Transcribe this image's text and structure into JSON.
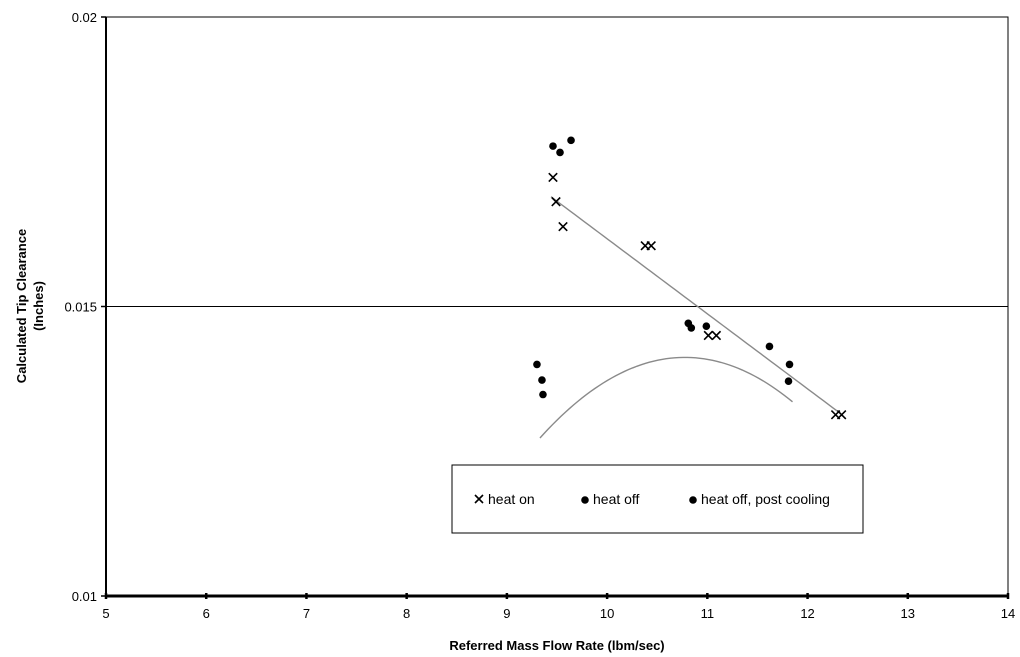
{
  "chart_data": {
    "type": "scatter",
    "xlabel": "Referred Mass Flow Rate (lbm/sec)",
    "ylabel_lines": [
      "Calculated Tip Clearance",
      "(Inches)"
    ],
    "xlim": [
      5,
      14
    ],
    "ylim": [
      0.01,
      0.02
    ],
    "x_ticks": [
      "5",
      "6",
      "7",
      "8",
      "9",
      "10",
      "11",
      "12",
      "13",
      "14"
    ],
    "y_ticks": [
      "0.01",
      "0.015",
      "0.02"
    ],
    "gridlines_y": [
      0.015
    ],
    "legend_position": "lower-center",
    "colors": {
      "marker": "#000000",
      "trend": "#8a8a8a",
      "grid": "#000000"
    },
    "series": [
      {
        "name": "heat on",
        "marker": "x",
        "points": [
          [
            9.46,
            0.01723
          ],
          [
            9.49,
            0.01681
          ],
          [
            9.56,
            0.01638
          ],
          [
            10.38,
            0.01605
          ],
          [
            10.44,
            0.01605
          ],
          [
            11.01,
            0.0145
          ],
          [
            11.09,
            0.0145
          ],
          [
            12.28,
            0.01313
          ],
          [
            12.34,
            0.01313
          ]
        ]
      },
      {
        "name": "heat off",
        "marker": "dot",
        "points": [
          [
            9.3,
            0.014
          ],
          [
            9.35,
            0.01373
          ],
          [
            9.36,
            0.01348
          ],
          [
            10.81,
            0.01471
          ],
          [
            10.84,
            0.01463
          ],
          [
            10.99,
            0.01466
          ],
          [
            11.62,
            0.01431
          ],
          [
            11.82,
            0.014
          ],
          [
            11.81,
            0.01371
          ]
        ]
      },
      {
        "name": "heat off, post cooling",
        "marker": "dot",
        "points": [
          [
            9.46,
            0.01777
          ],
          [
            9.53,
            0.01766
          ],
          [
            9.64,
            0.01787
          ]
        ]
      }
    ],
    "trendlines": [
      {
        "series": "heat on",
        "kind": "linear",
        "x_range": [
          9.44,
          12.3
        ],
        "coef": [
          0.02913,
          -0.001296
        ]
      },
      {
        "series": "heat off",
        "kind": "quadratic",
        "x_range": [
          9.33,
          11.85
        ],
        "coef": [
          -0.06316,
          0.014343,
          -0.0006655
        ]
      }
    ]
  }
}
